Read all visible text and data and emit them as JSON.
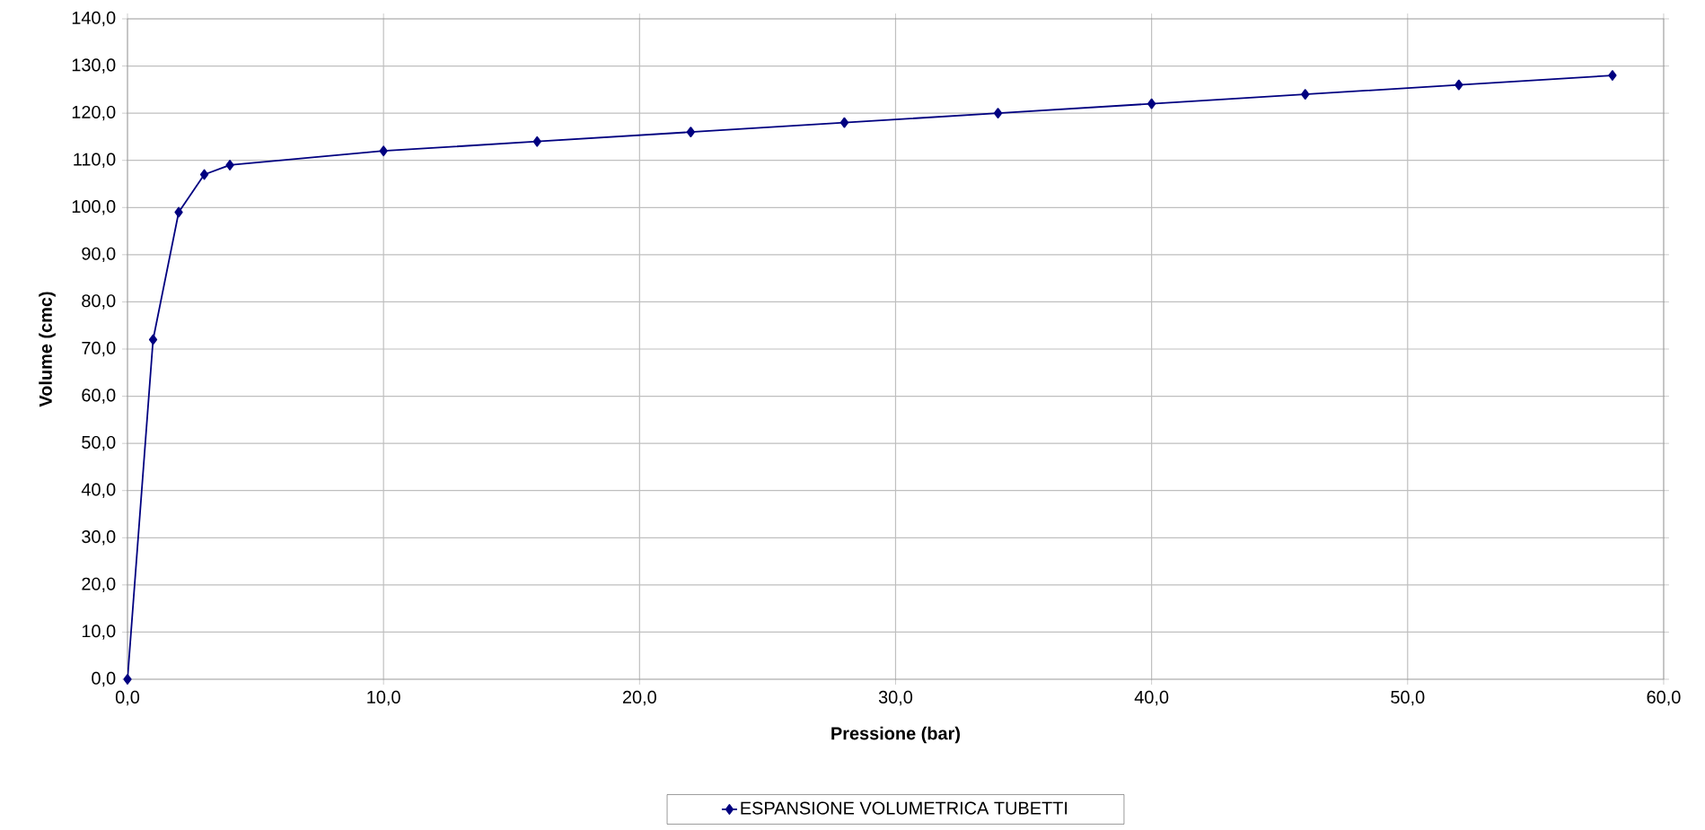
{
  "chart_data": {
    "type": "line",
    "xlabel": "Pressione (bar)",
    "ylabel": "Volume (cmc)",
    "x": [
      0,
      1,
      2,
      3,
      4,
      10,
      16,
      22,
      28,
      34,
      40,
      46,
      52,
      58
    ],
    "series": [
      {
        "name": "ESPANSIONE VOLUMETRICA TUBETTI",
        "color": "#000080",
        "values": [
          0,
          72,
          99,
          107,
          109,
          112,
          114,
          116,
          118,
          120,
          122,
          124,
          126,
          128
        ]
      }
    ],
    "xlim": [
      0,
      60
    ],
    "ylim": [
      0,
      140
    ],
    "xticks": [
      {
        "value": 0,
        "label": "0,0"
      },
      {
        "value": 10,
        "label": "10,0"
      },
      {
        "value": 20,
        "label": "20,0"
      },
      {
        "value": 30,
        "label": "30,0"
      },
      {
        "value": 40,
        "label": "40,0"
      },
      {
        "value": 50,
        "label": "50,0"
      },
      {
        "value": 60,
        "label": "60,0"
      }
    ],
    "yticks": [
      {
        "value": 0,
        "label": "0,0"
      },
      {
        "value": 10,
        "label": "10,0"
      },
      {
        "value": 20,
        "label": "20,0"
      },
      {
        "value": 30,
        "label": "30,0"
      },
      {
        "value": 40,
        "label": "40,0"
      },
      {
        "value": 50,
        "label": "50,0"
      },
      {
        "value": 60,
        "label": "60,0"
      },
      {
        "value": 70,
        "label": "70,0"
      },
      {
        "value": 80,
        "label": "80,0"
      },
      {
        "value": 90,
        "label": "90,0"
      },
      {
        "value": 100,
        "label": "100,0"
      },
      {
        "value": 110,
        "label": "110,0"
      },
      {
        "value": 120,
        "label": "120,0"
      },
      {
        "value": 130,
        "label": "130,0"
      },
      {
        "value": 140,
        "label": "140,0"
      }
    ],
    "grid": true,
    "legend": "bottom",
    "marker": "diamond",
    "line_style": "solid"
  }
}
